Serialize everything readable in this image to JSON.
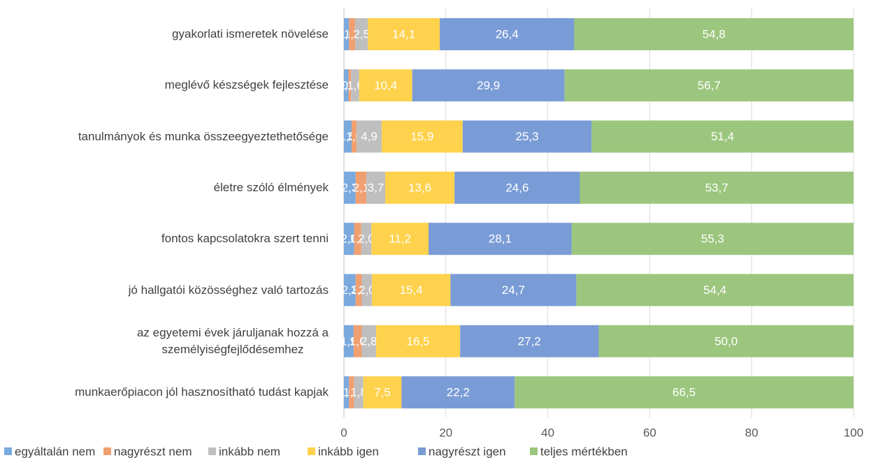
{
  "chart_data": {
    "type": "stacked_barh",
    "categories": [
      "gyakorlati ismeretek növelése",
      "meglévő készségek fejlesztése",
      "tanulmányok és munka összeegyeztethetősége",
      "életre szóló élmények",
      "fontos kapcsolatokra szert tenni",
      "jó hallgatói közösséghez való tartozás",
      "az egyetemi évek járuljanak hozzá a\nszemélyiségfejlődésemhez",
      "munkaerőpiacon jól hasznosítható tudást kapjak"
    ],
    "series": [
      {
        "name": "egyáltalán nem",
        "color": "#7aa9dd",
        "values": [
          1.0,
          0.9,
          1.5,
          2.3,
          2.0,
          2.3,
          1.9,
          1.0
        ],
        "value_labels": [
          "1,0",
          "0,9",
          "1,5",
          "2,3",
          "2,0",
          "2,3",
          "1,9",
          "1,0"
        ]
      },
      {
        "name": "nagyrészt nem",
        "color": "#f0a070",
        "values": [
          1.2,
          0.5,
          1.0,
          2.1,
          1.4,
          1.2,
          1.6,
          1.0
        ],
        "value_labels": [
          "1,2",
          "0,5",
          "1,0",
          "2,1",
          "1,4",
          "1,2",
          "1,6",
          "1,0"
        ]
      },
      {
        "name": "inkább nem",
        "color": "#bfbfbf",
        "values": [
          2.5,
          1.6,
          4.9,
          3.7,
          2.0,
          2.0,
          2.8,
          1.8
        ],
        "value_labels": [
          "2,5",
          "1,6",
          "4,9",
          "3,7",
          "2,0",
          "2,0",
          "2,8",
          "1,8"
        ]
      },
      {
        "name": "inkább igen",
        "color": "#ffd24d",
        "values": [
          14.1,
          10.4,
          15.9,
          13.6,
          11.2,
          15.4,
          16.5,
          7.5
        ],
        "value_labels": [
          "14,1",
          "10,4",
          "15,9",
          "13,6",
          "11,2",
          "15,4",
          "16,5",
          "7,5"
        ]
      },
      {
        "name": "nagyrészt igen",
        "color": "#7a9cd6",
        "values": [
          26.4,
          29.9,
          25.3,
          24.6,
          28.1,
          24.7,
          27.2,
          22.2
        ],
        "value_labels": [
          "26,4",
          "29,9",
          "25,3",
          "24,6",
          "28,1",
          "24,7",
          "27,2",
          "22,2"
        ]
      },
      {
        "name": "teljes mértékben",
        "color": "#9cc67e",
        "values": [
          54.8,
          56.7,
          51.4,
          53.7,
          55.3,
          54.4,
          50.0,
          66.5
        ],
        "value_labels": [
          "54,8",
          "56,7",
          "51,4",
          "53,7",
          "55,3",
          "54,4",
          "50,0",
          "66,5"
        ]
      }
    ],
    "xlim": [
      0,
      100
    ],
    "xticks": [
      0,
      20,
      40,
      60,
      80,
      100
    ],
    "grid": true,
    "legend": "bottom"
  }
}
